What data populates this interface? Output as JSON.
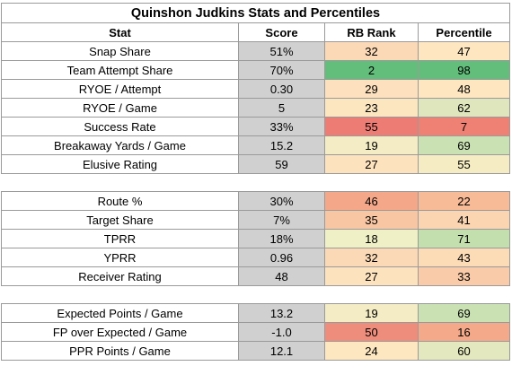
{
  "table": {
    "title": "Quinshon Judkins Stats and Percentiles",
    "columns": [
      "Stat",
      "Score",
      "RB Rank",
      "Percentile"
    ],
    "sections": [
      [
        {
          "stat": "Snap Share",
          "score": "51%",
          "rank": "32",
          "rank_color": "#fbd9b6",
          "pct": "47",
          "pct_color": "#fde6c0"
        },
        {
          "stat": "Team Attempt Share",
          "score": "70%",
          "rank": "2",
          "rank_color": "#63be7b",
          "pct": "98",
          "pct_color": "#63be7b"
        },
        {
          "stat": "RYOE / Attempt",
          "score": "0.30",
          "rank": "29",
          "rank_color": "#fde0bd",
          "pct": "48",
          "pct_color": "#fde6c0"
        },
        {
          "stat": "RYOE / Game",
          "score": "5",
          "rank": "23",
          "rank_color": "#fbe6bf",
          "pct": "62",
          "pct_color": "#dfe6bd"
        },
        {
          "stat": "Success Rate",
          "score": "33%",
          "rank": "55",
          "rank_color": "#ed7c74",
          "pct": "7",
          "pct_color": "#ef8174"
        },
        {
          "stat": "Breakaway Yards / Game",
          "score": "15.2",
          "rank": "19",
          "rank_color": "#f3ecc4",
          "pct": "69",
          "pct_color": "#cae2b3"
        },
        {
          "stat": "Elusive Rating",
          "score": "59",
          "rank": "27",
          "rank_color": "#fde2be",
          "pct": "55",
          "pct_color": "#f5ecc3"
        }
      ],
      [
        {
          "stat": "Route %",
          "score": "30%",
          "rank": "46",
          "rank_color": "#f4a889",
          "pct": "22",
          "pct_color": "#f8bb98"
        },
        {
          "stat": "Target Share",
          "score": "7%",
          "rank": "35",
          "rank_color": "#f8c6a3",
          "pct": "41",
          "pct_color": "#fbd5b2"
        },
        {
          "stat": "TPRR",
          "score": "18%",
          "rank": "18",
          "rank_color": "#eff0c6",
          "pct": "71",
          "pct_color": "#c4dfae"
        },
        {
          "stat": "YPRR",
          "score": "0.96",
          "rank": "32",
          "rank_color": "#fbd9b6",
          "pct": "43",
          "pct_color": "#fcdbb7"
        },
        {
          "stat": "Receiver Rating",
          "score": "48",
          "rank": "27",
          "rank_color": "#fde2be",
          "pct": "33",
          "pct_color": "#f9cba8"
        }
      ],
      [
        {
          "stat": "Expected Points / Game",
          "score": "13.2",
          "rank": "19",
          "rank_color": "#f3ecc4",
          "pct": "69",
          "pct_color": "#cae2b3"
        },
        {
          "stat": "FP over Expected / Game",
          "score": "-1.0",
          "rank": "50",
          "rank_color": "#ef8d7c",
          "pct": "16",
          "pct_color": "#f4a98a"
        },
        {
          "stat": "PPR Points / Game",
          "score": "12.1",
          "rank": "24",
          "rank_color": "#fde7c1",
          "pct": "60",
          "pct_color": "#e4e8be"
        }
      ]
    ]
  }
}
